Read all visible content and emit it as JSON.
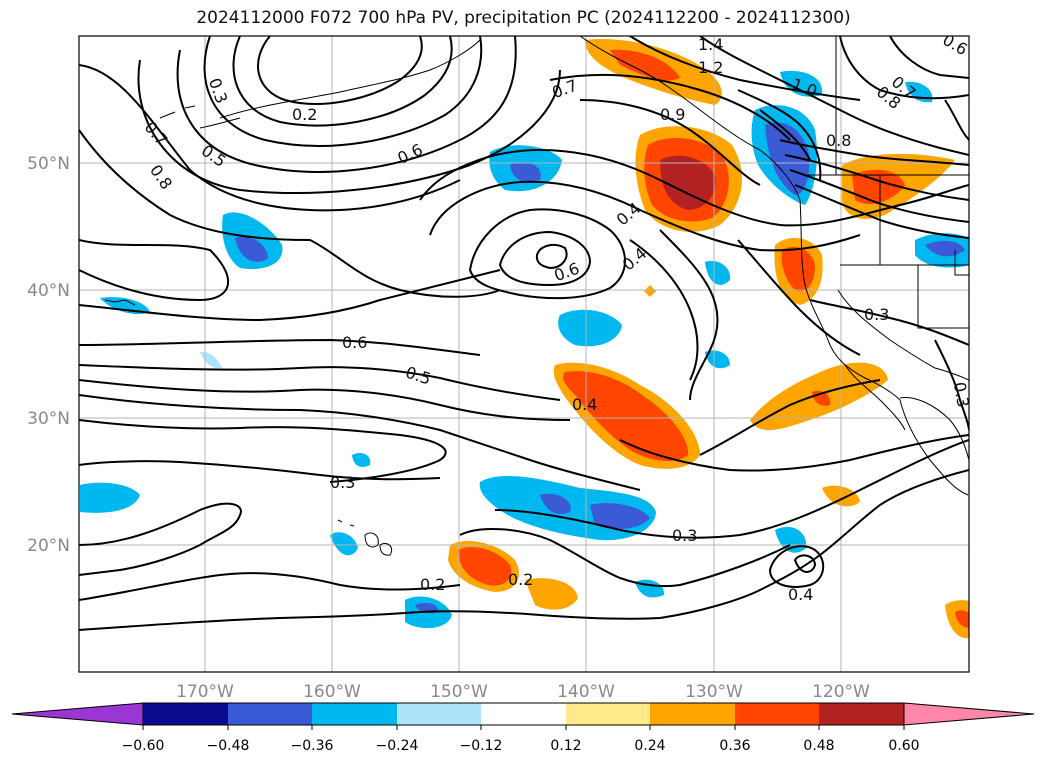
{
  "title": "2024112000 F072 700 hPa PV, precipitation PC (2024112200 - 2024112300)",
  "lat_labels": [
    "50°N",
    "40°N",
    "30°N",
    "20°N"
  ],
  "lon_labels": [
    "170°W",
    "160°W",
    "150°W",
    "140°W",
    "130°W",
    "120°W"
  ],
  "contour_labels": [
    "0.3",
    "0.2",
    "0.5",
    "0.7",
    "0.8",
    "0.6",
    "0.6",
    "0.4",
    "0.4",
    "0.6",
    "0.7",
    "1.4",
    "1.2",
    "1.0",
    "0.9",
    "0.7",
    "0.8",
    "0.8",
    "0.6",
    "0.5",
    "0.4",
    "0.3",
    "0.3",
    "0.3",
    "0.2",
    "0.2",
    "0.3",
    "0.4",
    "0.3"
  ],
  "colorbar": {
    "ticks": [
      "−0.60",
      "−0.48",
      "−0.36",
      "−0.24",
      "−0.12",
      "0.12",
      "0.24",
      "0.36",
      "0.48",
      "0.60"
    ],
    "colors": [
      "#9b35d4",
      "#0a0a8f",
      "#3b5bd6",
      "#00b8f0",
      "#aee4fb",
      "#ffffff",
      "#ffe98a",
      "#ffa500",
      "#ff4500",
      "#b22222",
      "#ff88aa"
    ]
  },
  "colors": {
    "grid": "#b5b5b5",
    "axis_label": "#888888",
    "contour": "#000000"
  }
}
